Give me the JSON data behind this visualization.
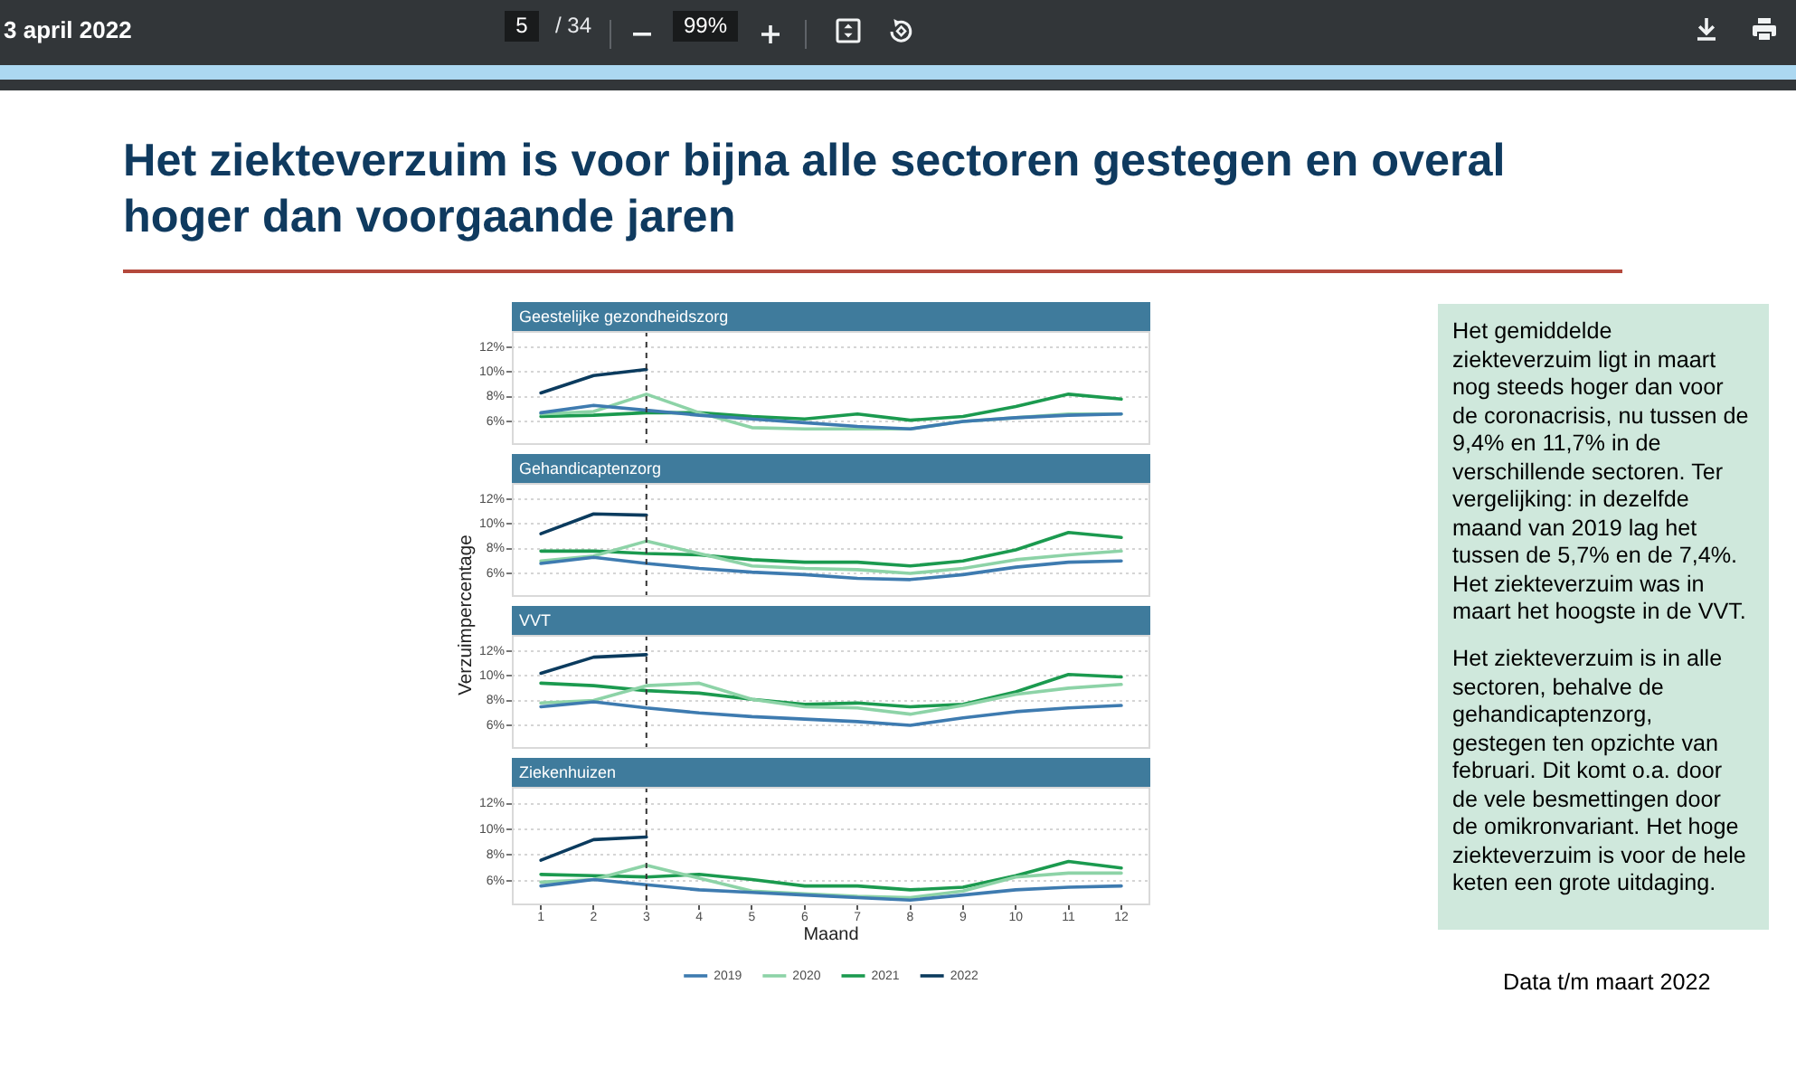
{
  "chart_data": [
    {
      "type": "other",
      "annotations": [
        "3 april 2022",
        "5",
        "/ 34",
        "99%"
      ]
    },
    {
      "type": "other",
      "title": "Het ziekteverzuim is voor bijna alle sectoren gestegen en overal hoger dan voorgaande jaren"
    },
    {
      "type": "line",
      "title": "Geestelijke gezondheidszorg",
      "x": [
        1,
        2,
        3,
        4,
        5,
        6,
        7,
        8,
        9,
        10,
        11,
        12
      ],
      "series": [
        {
          "color": "#3e7bb0",
          "values": [
            6.7,
            7.3,
            6.9,
            6.5,
            6.2,
            5.9,
            5.6,
            5.4,
            6.0,
            6.3,
            6.5,
            6.6
          ]
        },
        {
          "color": "#8dd3a7",
          "values": [
            6.6,
            6.8,
            8.2,
            6.7,
            5.5,
            5.4,
            5.4,
            5.4,
            6.0,
            6.3,
            6.6,
            6.6
          ]
        },
        {
          "color": "#1b9a4f",
          "values": [
            6.4,
            6.5,
            6.7,
            6.7,
            6.4,
            6.2,
            6.6,
            6.1,
            6.4,
            7.2,
            8.2,
            7.8
          ]
        },
        {
          "color": "#0b3b5e",
          "values": [
            8.3,
            9.7,
            10.2,
            null,
            null,
            null,
            null,
            null,
            null,
            null,
            null,
            null
          ]
        }
      ],
      "xlim": [
        0.45,
        12.55
      ],
      "ylim": [
        4.1,
        13.3
      ],
      "yticks": [
        {
          "value": 6,
          "label": "6%"
        },
        {
          "value": 8,
          "label": "8%"
        },
        {
          "value": 10,
          "label": "10%"
        },
        {
          "value": 12,
          "label": "12%"
        }
      ],
      "grid": "y",
      "tick_labels": "y",
      "ref_lines": [
        {
          "axis": "x",
          "value": 3,
          "color": "#333333",
          "line_style": "dashed"
        }
      ]
    },
    {
      "type": "line",
      "title": "Gehandicaptenzorg",
      "ylabel": "Verzuimpercentage",
      "x": [
        1,
        2,
        3,
        4,
        5,
        6,
        7,
        8,
        9,
        10,
        11,
        12
      ],
      "series": [
        {
          "color": "#3e7bb0",
          "values": [
            6.8,
            7.3,
            6.8,
            6.4,
            6.1,
            5.9,
            5.6,
            5.5,
            5.9,
            6.5,
            6.9,
            7.0
          ]
        },
        {
          "color": "#8dd3a7",
          "values": [
            7.0,
            7.4,
            8.6,
            7.6,
            6.6,
            6.4,
            6.3,
            6.0,
            6.4,
            7.1,
            7.5,
            7.8
          ]
        },
        {
          "color": "#1b9a4f",
          "values": [
            7.8,
            7.8,
            7.6,
            7.5,
            7.1,
            6.9,
            6.9,
            6.6,
            7.0,
            7.9,
            9.3,
            8.9
          ]
        },
        {
          "color": "#0b3b5e",
          "values": [
            9.2,
            10.8,
            10.7,
            null,
            null,
            null,
            null,
            null,
            null,
            null,
            null,
            null
          ]
        }
      ],
      "xlim": [
        0.45,
        12.55
      ],
      "ylim": [
        4.1,
        13.3
      ],
      "yticks": [
        {
          "value": 6,
          "label": "6%"
        },
        {
          "value": 8,
          "label": "8%"
        },
        {
          "value": 10,
          "label": "10%"
        },
        {
          "value": 12,
          "label": "12%"
        }
      ],
      "grid": "y",
      "tick_labels": "y",
      "ref_lines": [
        {
          "axis": "x",
          "value": 3,
          "color": "#333333",
          "line_style": "dashed"
        }
      ]
    },
    {
      "type": "line",
      "title": "VVT",
      "x": [
        1,
        2,
        3,
        4,
        5,
        6,
        7,
        8,
        9,
        10,
        11,
        12
      ],
      "series": [
        {
          "color": "#3e7bb0",
          "values": [
            7.5,
            7.9,
            7.4,
            7.0,
            6.7,
            6.5,
            6.3,
            6.0,
            6.6,
            7.1,
            7.4,
            7.6
          ]
        },
        {
          "color": "#8dd3a7",
          "values": [
            7.8,
            8.0,
            9.2,
            9.4,
            8.1,
            7.5,
            7.4,
            6.9,
            7.6,
            8.5,
            9.0,
            9.3
          ]
        },
        {
          "color": "#1b9a4f",
          "values": [
            9.4,
            9.2,
            8.8,
            8.6,
            8.1,
            7.7,
            7.8,
            7.5,
            7.7,
            8.7,
            10.1,
            9.9
          ]
        },
        {
          "color": "#0b3b5e",
          "values": [
            10.2,
            11.5,
            11.7,
            null,
            null,
            null,
            null,
            null,
            null,
            null,
            null,
            null
          ]
        }
      ],
      "xlim": [
        0.45,
        12.55
      ],
      "ylim": [
        4.1,
        13.3
      ],
      "yticks": [
        {
          "value": 6,
          "label": "6%"
        },
        {
          "value": 8,
          "label": "8%"
        },
        {
          "value": 10,
          "label": "10%"
        },
        {
          "value": 12,
          "label": "12%"
        }
      ],
      "grid": "y",
      "tick_labels": "y",
      "ref_lines": [
        {
          "axis": "x",
          "value": 3,
          "color": "#333333",
          "line_style": "dashed"
        }
      ]
    },
    {
      "type": "line",
      "title": "Ziekenhuizen",
      "xlabel": "Maand",
      "x": [
        1,
        2,
        3,
        4,
        5,
        6,
        7,
        8,
        9,
        10,
        11,
        12
      ],
      "series": [
        {
          "name": "2019",
          "color": "#3e7bb0",
          "values": [
            5.6,
            6.1,
            5.7,
            5.3,
            5.1,
            4.9,
            4.7,
            4.5,
            4.9,
            5.3,
            5.5,
            5.6
          ]
        },
        {
          "name": "2020",
          "color": "#8dd3a7",
          "values": [
            5.9,
            6.1,
            7.2,
            6.2,
            5.2,
            5.0,
            4.8,
            4.7,
            5.2,
            6.3,
            6.6,
            6.6
          ]
        },
        {
          "name": "2021",
          "color": "#1b9a4f",
          "values": [
            6.5,
            6.4,
            6.3,
            6.5,
            6.1,
            5.6,
            5.6,
            5.3,
            5.5,
            6.4,
            7.5,
            7.0
          ]
        },
        {
          "name": "2022",
          "color": "#0b3b5e",
          "values": [
            7.6,
            9.2,
            9.4,
            null,
            null,
            null,
            null,
            null,
            null,
            null,
            null,
            null
          ]
        }
      ],
      "xlim": [
        0.45,
        12.55
      ],
      "xticks": [
        1,
        2,
        3,
        4,
        5,
        6,
        7,
        8,
        9,
        10,
        11,
        12
      ],
      "ylim": [
        4.1,
        13.3
      ],
      "yticks": [
        {
          "value": 6,
          "label": "6%"
        },
        {
          "value": 8,
          "label": "8%"
        },
        {
          "value": 10,
          "label": "10%"
        },
        {
          "value": 12,
          "label": "12%"
        }
      ],
      "grid": "y",
      "legend": "bottom",
      "ref_lines": [
        {
          "axis": "x",
          "value": 3,
          "color": "#333333",
          "line_style": "dashed"
        }
      ]
    },
    {
      "type": "other",
      "annotations": [
        "Het gemiddelde ziekteverzuim ligt in maart nog steeds hoger dan voor de coronacrisis, nu tussen de 9,4% en 11,7% in de verschillende sectoren. Ter vergelijking: in dezelfde maand van 2019 lag het tussen de 5,7% en de 7,4%. Het ziekteverzuim was in maart het hoogste in de VVT.",
        "Het ziekteverzuim is in alle sectoren, behalve de gehandicaptenzorg, gestegen ten opzichte van februari. Dit komt o.a. door de vele besmettingen door de omikronvariant. Het hoge ziekteverzuim is voor de hele keten een grote uitdaging.",
        "Data t/m maart 2022"
      ]
    }
  ]
}
